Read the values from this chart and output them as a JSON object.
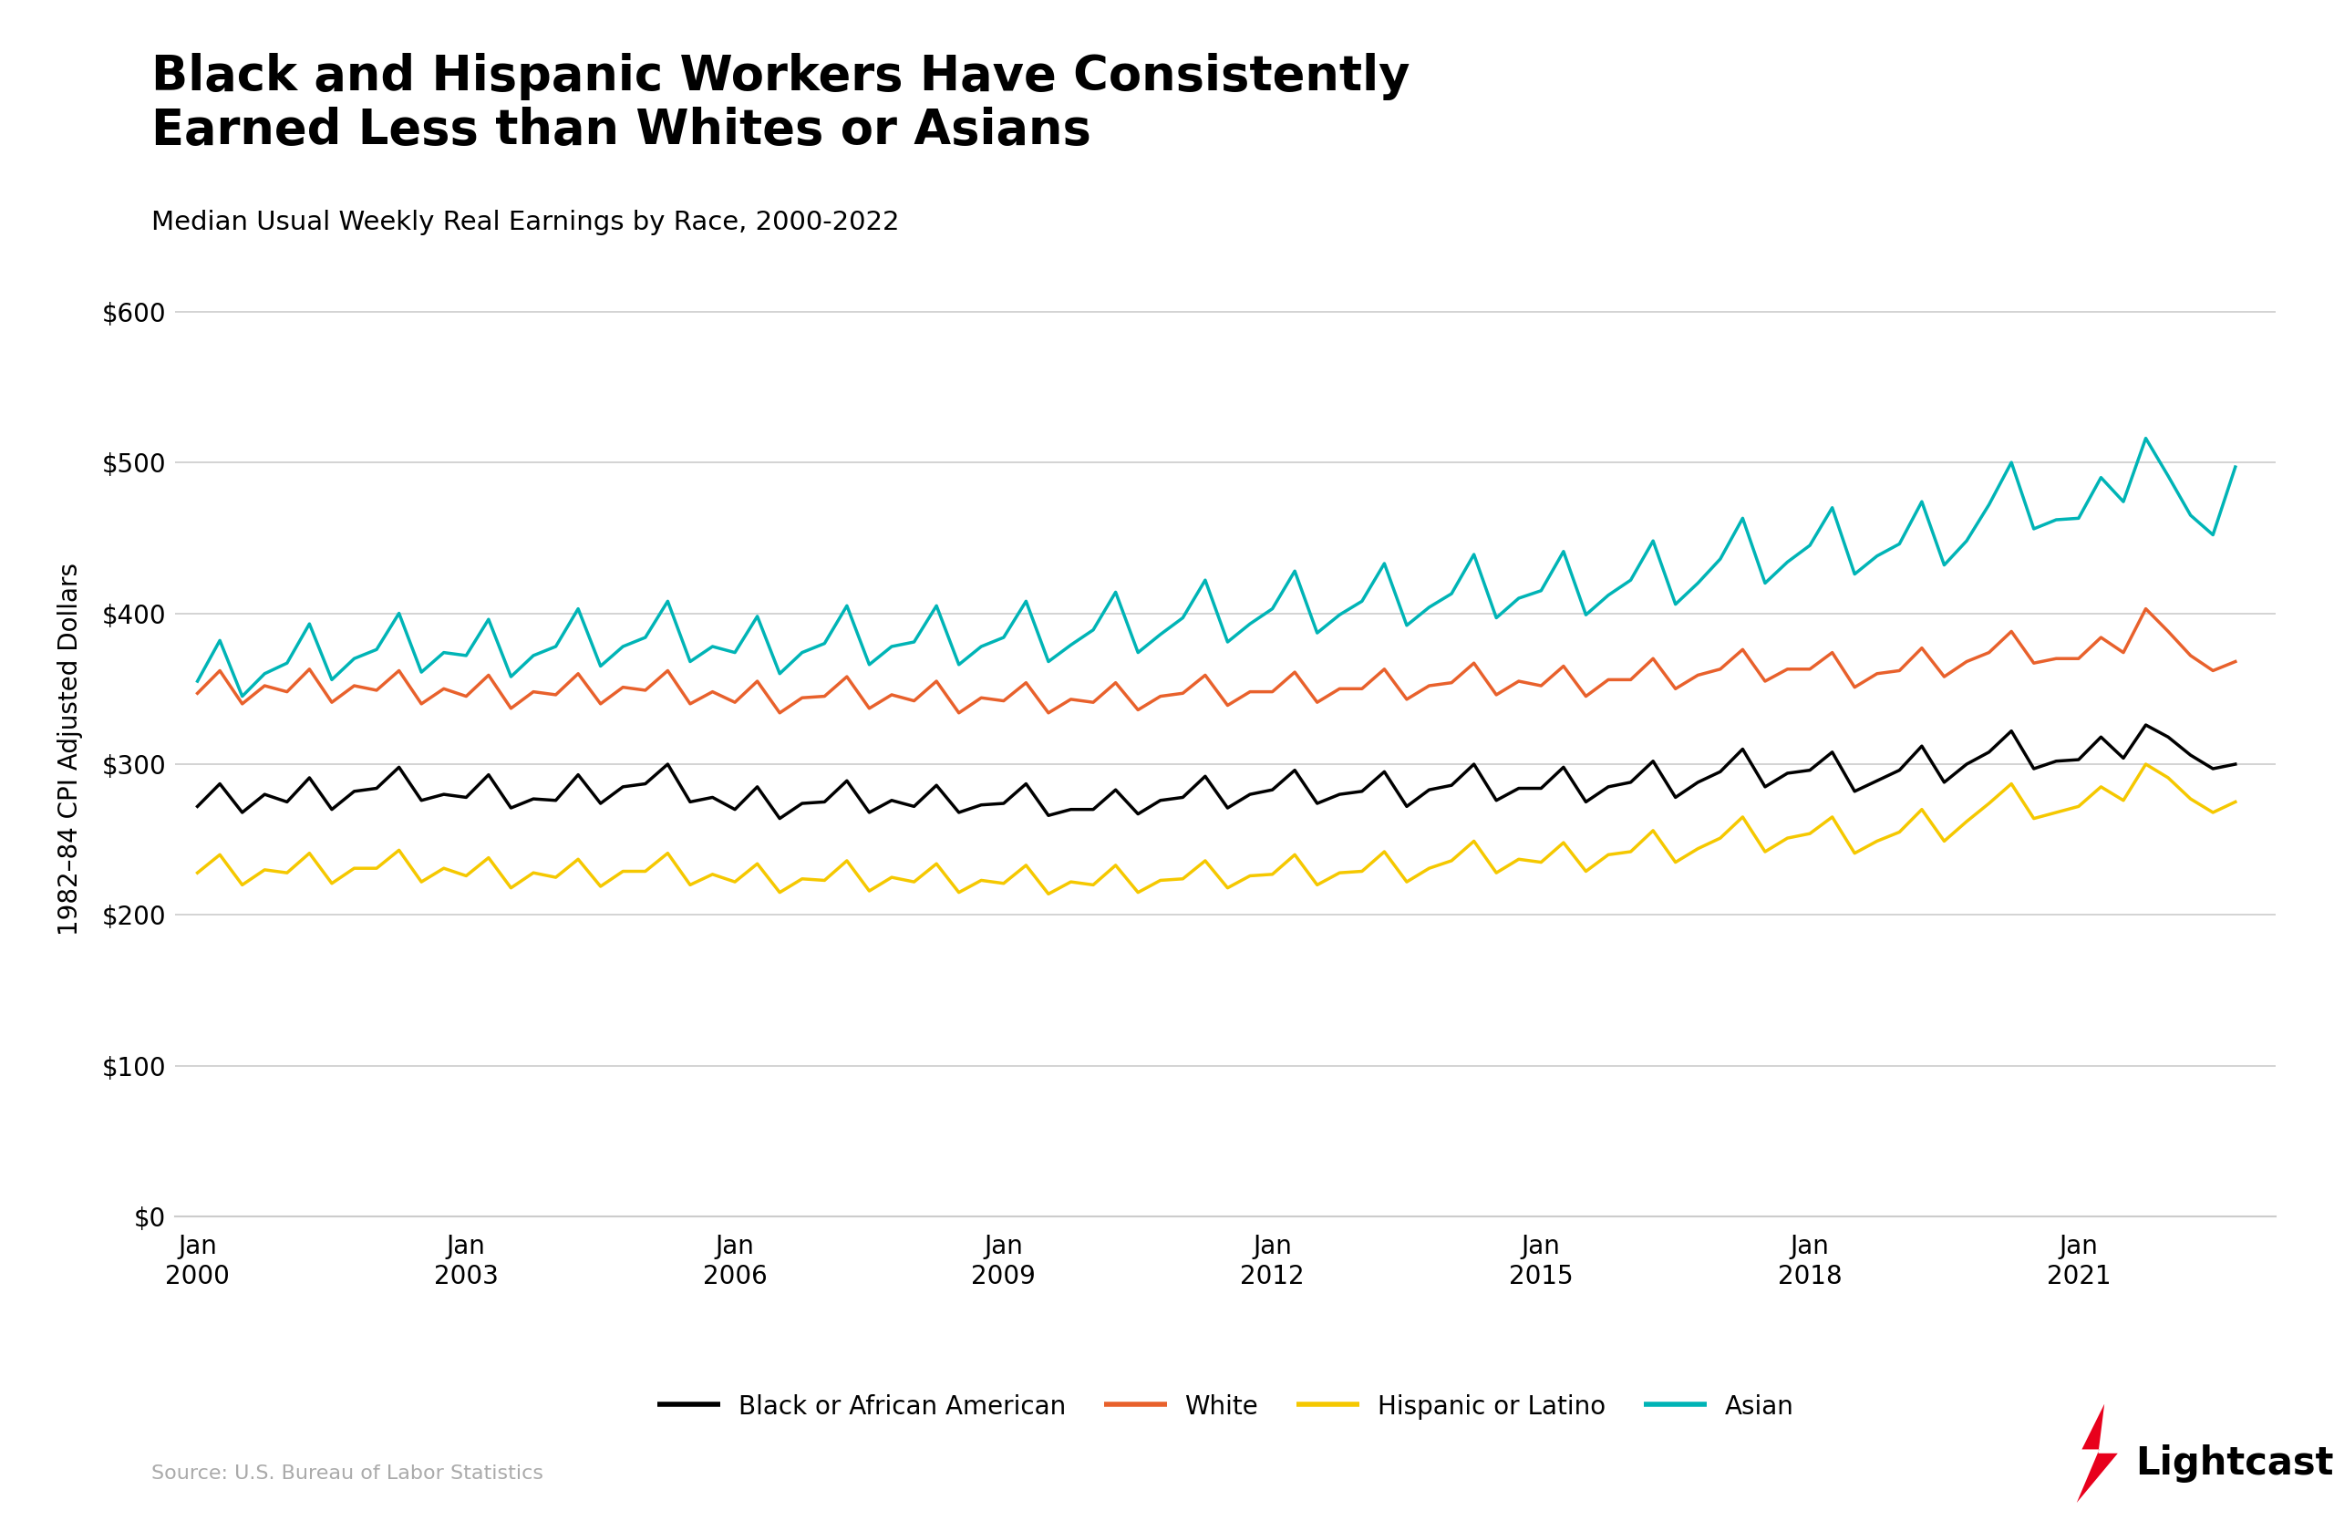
{
  "title": "Black and Hispanic Workers Have Consistently\nEarned Less than Whites or Asians",
  "subtitle": "Median Usual Weekly Real Earnings by Race, 2000-2022",
  "ylabel": "1982–84 CPI Adjusted Dollars",
  "source": "Source: U.S. Bureau of Labor Statistics",
  "colors": {
    "Black or African American": "#000000",
    "White": "#E8612C",
    "Hispanic or Latino": "#F5C800",
    "Asian": "#00B4B6"
  },
  "legend_labels": [
    "Black or African American",
    "White",
    "Hispanic or Latino",
    "Asian"
  ],
  "yticks": [
    0,
    100,
    200,
    300,
    400,
    500,
    600
  ],
  "xtick_years": [
    2000,
    2003,
    2006,
    2009,
    2012,
    2015,
    2018,
    2021
  ],
  "background_color": "#FFFFFF",
  "grid_color": "#CCCCCC",
  "title_fontsize": 38,
  "subtitle_fontsize": 21,
  "black_data": [
    272,
    287,
    268,
    280,
    275,
    291,
    270,
    282,
    284,
    298,
    276,
    280,
    278,
    293,
    271,
    277,
    276,
    293,
    274,
    285,
    287,
    300,
    275,
    278,
    270,
    285,
    264,
    274,
    275,
    289,
    268,
    276,
    272,
    286,
    268,
    273,
    274,
    287,
    266,
    270,
    270,
    283,
    267,
    276,
    278,
    292,
    271,
    280,
    283,
    296,
    274,
    280,
    282,
    295,
    272,
    283,
    286,
    300,
    276,
    284,
    284,
    298,
    275,
    285,
    288,
    302,
    278,
    288,
    295,
    310,
    285,
    294,
    296,
    308,
    282,
    289,
    296,
    312,
    288,
    300,
    308,
    322,
    297,
    302,
    303,
    318,
    304,
    326,
    318,
    306,
    297,
    300
  ],
  "white_data": [
    347,
    362,
    340,
    352,
    348,
    363,
    341,
    352,
    349,
    362,
    340,
    350,
    345,
    359,
    337,
    348,
    346,
    360,
    340,
    351,
    349,
    362,
    340,
    348,
    341,
    355,
    334,
    344,
    345,
    358,
    337,
    346,
    342,
    355,
    334,
    344,
    342,
    354,
    334,
    343,
    341,
    354,
    336,
    345,
    347,
    359,
    339,
    348,
    348,
    361,
    341,
    350,
    350,
    363,
    343,
    352,
    354,
    367,
    346,
    355,
    352,
    365,
    345,
    356,
    356,
    370,
    350,
    359,
    363,
    376,
    355,
    363,
    363,
    374,
    351,
    360,
    362,
    377,
    358,
    368,
    374,
    388,
    367,
    370,
    370,
    384,
    374,
    403,
    388,
    372,
    362,
    368
  ],
  "hispanic_data": [
    228,
    240,
    220,
    230,
    228,
    241,
    221,
    231,
    231,
    243,
    222,
    231,
    226,
    238,
    218,
    228,
    225,
    237,
    219,
    229,
    229,
    241,
    220,
    227,
    222,
    234,
    215,
    224,
    223,
    236,
    216,
    225,
    222,
    234,
    215,
    223,
    221,
    233,
    214,
    222,
    220,
    233,
    215,
    223,
    224,
    236,
    218,
    226,
    227,
    240,
    220,
    228,
    229,
    242,
    222,
    231,
    236,
    249,
    228,
    237,
    235,
    248,
    229,
    240,
    242,
    256,
    235,
    244,
    251,
    265,
    242,
    251,
    254,
    265,
    241,
    249,
    255,
    270,
    249,
    262,
    274,
    287,
    264,
    268,
    272,
    285,
    276,
    300,
    291,
    277,
    268,
    275
  ],
  "asian_data": [
    355,
    382,
    345,
    360,
    367,
    393,
    356,
    370,
    376,
    400,
    361,
    374,
    372,
    396,
    358,
    372,
    378,
    403,
    365,
    378,
    384,
    408,
    368,
    378,
    374,
    398,
    360,
    374,
    380,
    405,
    366,
    378,
    381,
    405,
    366,
    378,
    384,
    408,
    368,
    379,
    389,
    414,
    374,
    386,
    397,
    422,
    381,
    393,
    403,
    428,
    387,
    399,
    408,
    433,
    392,
    404,
    413,
    439,
    397,
    410,
    415,
    441,
    399,
    412,
    422,
    448,
    406,
    420,
    436,
    463,
    420,
    434,
    445,
    470,
    426,
    438,
    446,
    474,
    432,
    448,
    472,
    500,
    456,
    462,
    463,
    490,
    474,
    516,
    491,
    465,
    452,
    497
  ]
}
